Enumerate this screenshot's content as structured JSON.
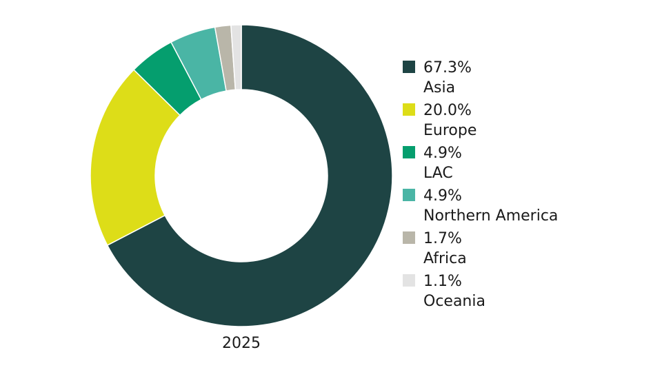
{
  "chart_data": {
    "type": "pie",
    "donut": true,
    "caption": "2025",
    "legend_placement": "right",
    "series": [
      {
        "percent_label": "67.3%",
        "name": "Asia",
        "value": 67.3,
        "color": "#1e4444"
      },
      {
        "percent_label": "20.0%",
        "name": "Europe",
        "value": 20.0,
        "color": "#dddd18"
      },
      {
        "percent_label": "4.9%",
        "name": "LAC",
        "value": 4.9,
        "color": "#059e6e"
      },
      {
        "percent_label": "4.9%",
        "name": "Northern America",
        "value": 4.9,
        "color": "#4ab5a5"
      },
      {
        "percent_label": "1.7%",
        "name": "Africa",
        "value": 1.7,
        "color": "#b9b6a9"
      },
      {
        "percent_label": "1.1%",
        "name": "Oceania",
        "value": 1.1,
        "color": "#e3e3e3"
      }
    ]
  }
}
